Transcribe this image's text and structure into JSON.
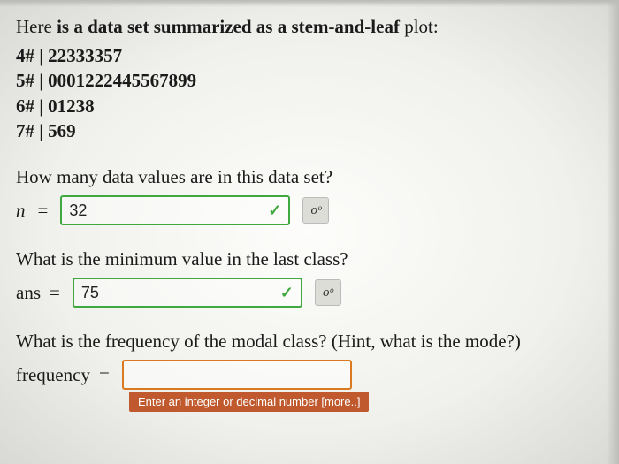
{
  "intro": {
    "prefix": "Here ",
    "bold1": "is a data set summarized as a stem-and-leaf",
    "suffix": " plot:"
  },
  "stemleaf": [
    {
      "stem": "4#",
      "sep": " | ",
      "leaves": "22333357"
    },
    {
      "stem": "5#",
      "sep": " | ",
      "leaves": "0001222445567899"
    },
    {
      "stem": "6#",
      "sep": " | ",
      "leaves": "01238"
    },
    {
      "stem": "7#",
      "sep": " | ",
      "leaves": "569"
    }
  ],
  "q1": {
    "text": "How many data values are in this data set?",
    "var": "n",
    "eq": "=",
    "value": "32",
    "correct": true
  },
  "q2": {
    "text": "What is the minimum value in the last class?",
    "var": "ans",
    "eq": "=",
    "value": "75",
    "correct": true
  },
  "q3": {
    "text": "What is the frequency of the modal class? (Hint, what is the mode?)",
    "var": "frequency",
    "eq": "=",
    "value": "",
    "hint": "Enter an integer or decimal number [more..]"
  },
  "format_label": "oᵒ",
  "check_mark": "✓",
  "colors": {
    "correct_border": "#3fa83f",
    "active_border": "#d97920",
    "hint_bg": "#c05a2e"
  }
}
